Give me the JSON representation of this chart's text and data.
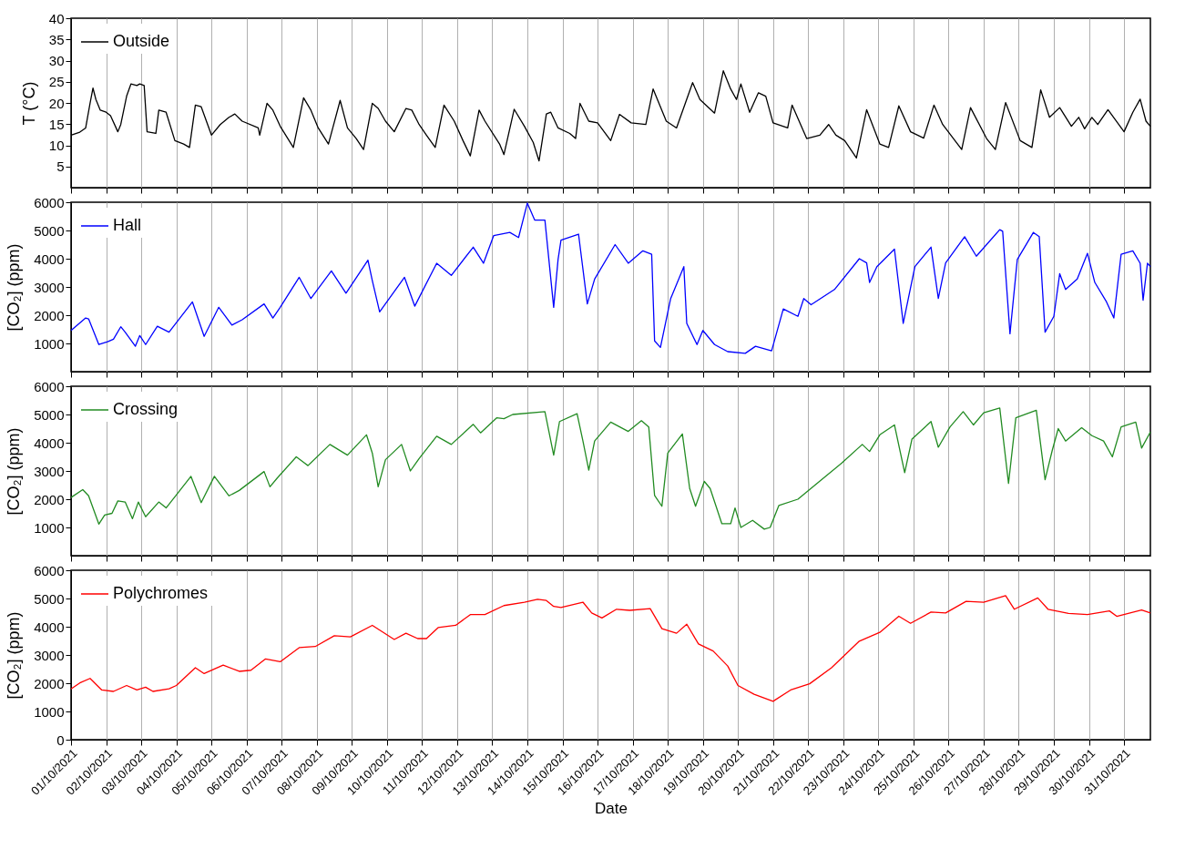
{
  "chart_data": [
    {
      "type": "line",
      "ylabel": "T (°C)",
      "ylim": [
        0,
        40
      ],
      "yticks": [
        5,
        10,
        15,
        20,
        25,
        30,
        35,
        40
      ],
      "xlim": [
        "2021-10-01T00:00",
        "2021-10-31T18:00"
      ],
      "grid": "x",
      "legend": "top left",
      "tick_labels": "y",
      "xticks": [
        {
          "value": "2021-10-01",
          "label": null
        },
        {
          "value": "2021-10-02",
          "label": null
        },
        {
          "value": "2021-10-03",
          "label": null
        },
        {
          "value": "2021-10-04",
          "label": null
        },
        {
          "value": "2021-10-05",
          "label": null
        },
        {
          "value": "2021-10-06",
          "label": null
        },
        {
          "value": "2021-10-07",
          "label": null
        },
        {
          "value": "2021-10-08",
          "label": null
        },
        {
          "value": "2021-10-09",
          "label": null
        },
        {
          "value": "2021-10-10",
          "label": null
        },
        {
          "value": "2021-10-11",
          "label": null
        },
        {
          "value": "2021-10-12",
          "label": null
        },
        {
          "value": "2021-10-13",
          "label": null
        },
        {
          "value": "2021-10-14",
          "label": null
        },
        {
          "value": "2021-10-15",
          "label": null
        },
        {
          "value": "2021-10-16",
          "label": null
        },
        {
          "value": "2021-10-17",
          "label": null
        },
        {
          "value": "2021-10-18",
          "label": null
        },
        {
          "value": "2021-10-19",
          "label": null
        },
        {
          "value": "2021-10-20",
          "label": null
        },
        {
          "value": "2021-10-21",
          "label": null
        },
        {
          "value": "2021-10-22",
          "label": null
        },
        {
          "value": "2021-10-23",
          "label": null
        },
        {
          "value": "2021-10-24",
          "label": null
        },
        {
          "value": "2021-10-25",
          "label": null
        },
        {
          "value": "2021-10-26",
          "label": null
        },
        {
          "value": "2021-10-27",
          "label": null
        },
        {
          "value": "2021-10-28",
          "label": null
        },
        {
          "value": "2021-10-29",
          "label": null
        },
        {
          "value": "2021-10-30",
          "label": null
        },
        {
          "value": "2021-10-31",
          "label": null
        }
      ],
      "series": [
        {
          "name": "Outside",
          "color": "#000000",
          "x": [
            "2021-10-01T00:00",
            "2021-10-01T06:00",
            "2021-10-01T10:00",
            "2021-10-01T13:00",
            "2021-10-01T15:00",
            "2021-10-01T17:00",
            "2021-10-01T20:00",
            "2021-10-02T00:00",
            "2021-10-02T03:00",
            "2021-10-02T08:00",
            "2021-10-02T10:00",
            "2021-10-02T14:00",
            "2021-10-02T17:00",
            "2021-10-02T21:00",
            "2021-10-02T23:00",
            "2021-10-03T02:00",
            "2021-10-03T04:00",
            "2021-10-03T10:00",
            "2021-10-03T12:00",
            "2021-10-03T17:00",
            "2021-10-03T23:00",
            "2021-10-04T05:00",
            "2021-10-04T09:00",
            "2021-10-04T13:00",
            "2021-10-04T17:00",
            "2021-10-05T00:00",
            "2021-10-05T06:00",
            "2021-10-05T12:00",
            "2021-10-05T16:00",
            "2021-10-05T21:00",
            "2021-10-06T08:00",
            "2021-10-06T09:00",
            "2021-10-06T14:00",
            "2021-10-06T18:00",
            "2021-10-06T23:00",
            "2021-10-07T08:00",
            "2021-10-07T15:00",
            "2021-10-07T20:00",
            "2021-10-08T01:00",
            "2021-10-08T08:00",
            "2021-10-08T16:00",
            "2021-10-08T21:00",
            "2021-10-09T03:00",
            "2021-10-09T08:00",
            "2021-10-09T14:00",
            "2021-10-09T18:00",
            "2021-10-09T23:00",
            "2021-10-10T05:00",
            "2021-10-10T13:00",
            "2021-10-10T17:00",
            "2021-10-10T22:00",
            "2021-10-11T03:00",
            "2021-10-11T09:00",
            "2021-10-11T15:00",
            "2021-10-11T22:00",
            "2021-10-12T04:00",
            "2021-10-12T09:00",
            "2021-10-12T15:00",
            "2021-10-12T19:00",
            "2021-10-13T05:00",
            "2021-10-13T08:00",
            "2021-10-13T15:00",
            "2021-10-13T22:00",
            "2021-10-14T04:00",
            "2021-10-14T08:00",
            "2021-10-14T13:00",
            "2021-10-14T16:00",
            "2021-10-14T21:00",
            "2021-10-15T05:00",
            "2021-10-15T09:00",
            "2021-10-15T12:00",
            "2021-10-15T18:00",
            "2021-10-16T00:00",
            "2021-10-16T09:00",
            "2021-10-16T15:00",
            "2021-10-16T23:00",
            "2021-10-17T09:00",
            "2021-10-17T14:00",
            "2021-10-17T23:00",
            "2021-10-18T06:00",
            "2021-10-18T17:00",
            "2021-10-18T22:00",
            "2021-10-19T08:00",
            "2021-10-19T14:00",
            "2021-10-19T19:00",
            "2021-10-19T23:00",
            "2021-10-20T02:00",
            "2021-10-20T08:00",
            "2021-10-20T14:00",
            "2021-10-20T19:00",
            "2021-10-21T00:00",
            "2021-10-21T10:00",
            "2021-10-21T13:00",
            "2021-10-21T23:00",
            "2021-10-22T08:00",
            "2021-10-22T14:00",
            "2021-10-22T19:00",
            "2021-10-23T01:00",
            "2021-10-23T09:00",
            "2021-10-23T16:00",
            "2021-10-24T01:00",
            "2021-10-24T07:00",
            "2021-10-24T14:00",
            "2021-10-24T22:00",
            "2021-10-25T07:00",
            "2021-10-25T14:00",
            "2021-10-25T20:00",
            "2021-10-26T09:00",
            "2021-10-26T15:00",
            "2021-10-27T02:00",
            "2021-10-27T08:00",
            "2021-10-27T15:00",
            "2021-10-28T01:00",
            "2021-10-28T09:00",
            "2021-10-28T15:00",
            "2021-10-28T21:00",
            "2021-10-29T04:00",
            "2021-10-29T12:00",
            "2021-10-29T17:00",
            "2021-10-29T21:00",
            "2021-10-30T02:00",
            "2021-10-30T06:00",
            "2021-10-30T13:00",
            "2021-10-31T00:00",
            "2021-10-31T06:00",
            "2021-10-31T11:00",
            "2021-10-31T15:00",
            "2021-10-31T18:00"
          ],
          "values": [
            12.4,
            13.1,
            14.1,
            19.9,
            23.5,
            20.8,
            18.3,
            17.8,
            17.0,
            13.2,
            14.9,
            21.6,
            24.5,
            24.1,
            24.5,
            24.1,
            13.2,
            12.8,
            18.3,
            17.8,
            11.1,
            10.3,
            9.5,
            19.5,
            19.1,
            12.4,
            14.9,
            16.6,
            17.4,
            15.7,
            14.1,
            12.4,
            19.9,
            18.3,
            14.5,
            9.5,
            21.2,
            18.3,
            14.1,
            10.3,
            20.6,
            14.1,
            11.6,
            9.0,
            19.9,
            18.7,
            15.7,
            13.2,
            18.7,
            18.3,
            14.9,
            12.4,
            9.5,
            19.5,
            15.7,
            11.1,
            7.5,
            18.3,
            15.7,
            10.3,
            7.8,
            18.5,
            14.5,
            10.7,
            6.3,
            17.4,
            17.8,
            14.1,
            12.8,
            11.6,
            19.9,
            15.7,
            15.3,
            11.1,
            17.3,
            15.3,
            14.9,
            23.3,
            15.7,
            14.1,
            24.8,
            20.8,
            17.6,
            27.6,
            23.3,
            20.8,
            24.5,
            17.8,
            22.4,
            21.6,
            15.3,
            14.1,
            19.5,
            11.6,
            12.4,
            14.9,
            12.4,
            11.1,
            7.0,
            18.4,
            10.3,
            9.5,
            19.3,
            13.2,
            11.7,
            19.5,
            14.9,
            9.0,
            18.9,
            11.6,
            9.0,
            20.1,
            11.1,
            9.5,
            23.1,
            16.6,
            18.9,
            14.5,
            16.6,
            13.9,
            16.6,
            14.9,
            18.4,
            13.2,
            17.8,
            20.9,
            15.7,
            14.5
          ]
        }
      ]
    },
    {
      "type": "line",
      "ylabel": "[CO₂] (ppm)",
      "ylim": [
        0,
        6000
      ],
      "yticks": [
        1000,
        2000,
        3000,
        4000,
        5000,
        6000
      ],
      "xlim": [
        "2021-10-01T00:00",
        "2021-10-31T18:00"
      ],
      "grid": "x",
      "legend": "top left",
      "tick_labels": "y",
      "xticks": [
        {
          "value": "2021-10-01",
          "label": null
        },
        {
          "value": "2021-10-02",
          "label": null
        },
        {
          "value": "2021-10-03",
          "label": null
        },
        {
          "value": "2021-10-04",
          "label": null
        },
        {
          "value": "2021-10-05",
          "label": null
        },
        {
          "value": "2021-10-06",
          "label": null
        },
        {
          "value": "2021-10-07",
          "label": null
        },
        {
          "value": "2021-10-08",
          "label": null
        },
        {
          "value": "2021-10-09",
          "label": null
        },
        {
          "value": "2021-10-10",
          "label": null
        },
        {
          "value": "2021-10-11",
          "label": null
        },
        {
          "value": "2021-10-12",
          "label": null
        },
        {
          "value": "2021-10-13",
          "label": null
        },
        {
          "value": "2021-10-14",
          "label": null
        },
        {
          "value": "2021-10-15",
          "label": null
        },
        {
          "value": "2021-10-16",
          "label": null
        },
        {
          "value": "2021-10-17",
          "label": null
        },
        {
          "value": "2021-10-18",
          "label": null
        },
        {
          "value": "2021-10-19",
          "label": null
        },
        {
          "value": "2021-10-20",
          "label": null
        },
        {
          "value": "2021-10-21",
          "label": null
        },
        {
          "value": "2021-10-22",
          "label": null
        },
        {
          "value": "2021-10-23",
          "label": null
        },
        {
          "value": "2021-10-24",
          "label": null
        },
        {
          "value": "2021-10-25",
          "label": null
        },
        {
          "value": "2021-10-26",
          "label": null
        },
        {
          "value": "2021-10-27",
          "label": null
        },
        {
          "value": "2021-10-28",
          "label": null
        },
        {
          "value": "2021-10-29",
          "label": null
        },
        {
          "value": "2021-10-30",
          "label": null
        },
        {
          "value": "2021-10-31",
          "label": null
        }
      ],
      "series": [
        {
          "name": "Hall",
          "color": "#0000ff",
          "x": [
            "2021-10-01T00:00",
            "2021-10-01T10:00",
            "2021-10-01T12:00",
            "2021-10-01T19:00",
            "2021-10-02T01:00",
            "2021-10-02T05:00",
            "2021-10-02T10:00",
            "2021-10-02T13:00",
            "2021-10-02T20:00",
            "2021-10-02T23:00",
            "2021-10-03T03:00",
            "2021-10-03T11:00",
            "2021-10-03T19:00",
            "2021-10-04T11:00",
            "2021-10-04T19:00",
            "2021-10-05T05:00",
            "2021-10-05T14:00",
            "2021-10-05T21:00",
            "2021-10-06T12:00",
            "2021-10-06T18:00",
            "2021-10-06T23:00",
            "2021-10-07T12:00",
            "2021-10-07T20:00",
            "2021-10-08T10:00",
            "2021-10-08T20:00",
            "2021-10-09T11:00",
            "2021-10-09T14:00",
            "2021-10-09T19:00",
            "2021-10-10T12:00",
            "2021-10-10T19:00",
            "2021-10-11T10:00",
            "2021-10-11T20:00",
            "2021-10-12T11:00",
            "2021-10-12T18:00",
            "2021-10-13T01:00",
            "2021-10-13T12:00",
            "2021-10-13T18:00",
            "2021-10-14T00:00",
            "2021-10-14T05:00",
            "2021-10-14T12:00",
            "2021-10-14T18:00",
            "2021-10-14T21:00",
            "2021-10-14T23:00",
            "2021-10-15T11:00",
            "2021-10-15T17:00",
            "2021-10-15T22:00",
            "2021-10-16T12:00",
            "2021-10-16T21:00",
            "2021-10-17T07:00",
            "2021-10-17T13:00",
            "2021-10-17T15:00",
            "2021-10-17T19:00",
            "2021-10-18T02:00",
            "2021-10-18T11:00",
            "2021-10-18T13:00",
            "2021-10-18T20:00",
            "2021-10-19T00:00",
            "2021-10-19T08:00",
            "2021-10-19T17:00",
            "2021-10-20T05:00",
            "2021-10-20T12:00",
            "2021-10-20T23:00",
            "2021-10-21T07:00",
            "2021-10-21T17:00",
            "2021-10-21T21:00",
            "2021-10-22T02:00",
            "2021-10-22T18:00",
            "2021-10-23T11:00",
            "2021-10-23T16:00",
            "2021-10-23T18:00",
            "2021-10-23T23:00",
            "2021-10-24T11:00",
            "2021-10-24T17:00",
            "2021-10-25T01:00",
            "2021-10-25T12:00",
            "2021-10-25T17:00",
            "2021-10-25T22:00",
            "2021-10-26T11:00",
            "2021-10-26T19:00",
            "2021-10-27T11:00",
            "2021-10-27T13:00",
            "2021-10-27T18:00",
            "2021-10-27T23:00",
            "2021-10-28T10:00",
            "2021-10-28T14:00",
            "2021-10-28T18:00",
            "2021-10-29T00:00",
            "2021-10-29T04:00",
            "2021-10-29T08:00",
            "2021-10-29T16:00",
            "2021-10-29T23:00",
            "2021-10-30T04:00",
            "2021-10-30T12:00",
            "2021-10-30T17:00",
            "2021-10-30T22:00",
            "2021-10-31T06:00",
            "2021-10-31T11:00",
            "2021-10-31T13:00",
            "2021-10-31T16:00",
            "2021-10-31T18:00"
          ],
          "values": [
            1460,
            1900,
            1870,
            960,
            1060,
            1150,
            1590,
            1400,
            900,
            1280,
            960,
            1610,
            1400,
            2470,
            1250,
            2280,
            1650,
            1840,
            2400,
            1900,
            2280,
            3340,
            2590,
            3570,
            2780,
            3950,
            3220,
            2120,
            3340,
            2320,
            3840,
            3410,
            4410,
            3840,
            4820,
            4930,
            4750,
            5970,
            5370,
            5370,
            2280,
            3970,
            4660,
            4870,
            2400,
            3280,
            4500,
            3840,
            4280,
            4160,
            1090,
            860,
            2590,
            3720,
            1710,
            960,
            1460,
            960,
            710,
            650,
            900,
            740,
            2220,
            1960,
            2590,
            2370,
            2910,
            4000,
            3850,
            3160,
            3720,
            4340,
            1710,
            3720,
            4410,
            2590,
            3850,
            4780,
            4090,
            5030,
            4970,
            1340,
            3970,
            4930,
            4780,
            1400,
            1960,
            3470,
            2910,
            3280,
            4190,
            3160,
            2470,
            1900,
            4160,
            4280,
            3840,
            2530,
            3840,
            3720
          ]
        }
      ]
    },
    {
      "type": "line",
      "ylabel": "[CO₂] (ppm)",
      "ylim": [
        0,
        6000
      ],
      "yticks": [
        1000,
        2000,
        3000,
        4000,
        5000,
        6000
      ],
      "xlim": [
        "2021-10-01T00:00",
        "2021-10-31T18:00"
      ],
      "grid": "x",
      "legend": "top left",
      "tick_labels": "y",
      "xticks": [
        {
          "value": "2021-10-01",
          "label": null
        },
        {
          "value": "2021-10-02",
          "label": null
        },
        {
          "value": "2021-10-03",
          "label": null
        },
        {
          "value": "2021-10-04",
          "label": null
        },
        {
          "value": "2021-10-05",
          "label": null
        },
        {
          "value": "2021-10-06",
          "label": null
        },
        {
          "value": "2021-10-07",
          "label": null
        },
        {
          "value": "2021-10-08",
          "label": null
        },
        {
          "value": "2021-10-09",
          "label": null
        },
        {
          "value": "2021-10-10",
          "label": null
        },
        {
          "value": "2021-10-11",
          "label": null
        },
        {
          "value": "2021-10-12",
          "label": null
        },
        {
          "value": "2021-10-13",
          "label": null
        },
        {
          "value": "2021-10-14",
          "label": null
        },
        {
          "value": "2021-10-15",
          "label": null
        },
        {
          "value": "2021-10-16",
          "label": null
        },
        {
          "value": "2021-10-17",
          "label": null
        },
        {
          "value": "2021-10-18",
          "label": null
        },
        {
          "value": "2021-10-19",
          "label": null
        },
        {
          "value": "2021-10-20",
          "label": null
        },
        {
          "value": "2021-10-21",
          "label": null
        },
        {
          "value": "2021-10-22",
          "label": null
        },
        {
          "value": "2021-10-23",
          "label": null
        },
        {
          "value": "2021-10-24",
          "label": null
        },
        {
          "value": "2021-10-25",
          "label": null
        },
        {
          "value": "2021-10-26",
          "label": null
        },
        {
          "value": "2021-10-27",
          "label": null
        },
        {
          "value": "2021-10-28",
          "label": null
        },
        {
          "value": "2021-10-29",
          "label": null
        },
        {
          "value": "2021-10-30",
          "label": null
        },
        {
          "value": "2021-10-31",
          "label": null
        }
      ],
      "series": [
        {
          "name": "Crossing",
          "color": "#228b22",
          "x": [
            "2021-10-01T00:00",
            "2021-10-01T08:00",
            "2021-10-01T12:00",
            "2021-10-01T19:00",
            "2021-10-01T23:00",
            "2021-10-02T04:00",
            "2021-10-02T08:00",
            "2021-10-02T13:00",
            "2021-10-02T18:00",
            "2021-10-02T22:00",
            "2021-10-03T03:00",
            "2021-10-03T12:00",
            "2021-10-03T17:00",
            "2021-10-04T10:00",
            "2021-10-04T17:00",
            "2021-10-05T02:00",
            "2021-10-05T12:00",
            "2021-10-05T19:00",
            "2021-10-06T12:00",
            "2021-10-06T16:00",
            "2021-10-06T21:00",
            "2021-10-07T10:00",
            "2021-10-07T18:00",
            "2021-10-08T09:00",
            "2021-10-08T21:00",
            "2021-10-09T10:00",
            "2021-10-09T14:00",
            "2021-10-09T18:00",
            "2021-10-09T23:00",
            "2021-10-10T10:00",
            "2021-10-10T16:00",
            "2021-10-10T22:00",
            "2021-10-11T10:00",
            "2021-10-11T20:00",
            "2021-10-12T11:00",
            "2021-10-12T16:00",
            "2021-10-13T03:00",
            "2021-10-13T08:00",
            "2021-10-13T14:00",
            "2021-10-14T12:00",
            "2021-10-14T18:00",
            "2021-10-14T22:00",
            "2021-10-15T10:00",
            "2021-10-15T14:00",
            "2021-10-15T18:00",
            "2021-10-15T22:00",
            "2021-10-16T09:00",
            "2021-10-16T21:00",
            "2021-10-17T06:00",
            "2021-10-17T11:00",
            "2021-10-17T15:00",
            "2021-10-17T20:00",
            "2021-10-18T00:00",
            "2021-10-18T10:00",
            "2021-10-18T15:00",
            "2021-10-18T19:00",
            "2021-10-19T01:00",
            "2021-10-19T05:00",
            "2021-10-19T13:00",
            "2021-10-19T19:00",
            "2021-10-19T22:00",
            "2021-10-20T02:00",
            "2021-10-20T10:00",
            "2021-10-20T18:00",
            "2021-10-20T22:00",
            "2021-10-21T04:00",
            "2021-10-21T17:00",
            "2021-10-22T06:00",
            "2021-10-22T23:00",
            "2021-10-23T13:00",
            "2021-10-23T18:00",
            "2021-10-24T01:00",
            "2021-10-24T11:00",
            "2021-10-24T18:00",
            "2021-10-24T23:00",
            "2021-10-25T12:00",
            "2021-10-25T17:00",
            "2021-10-26T01:00",
            "2021-10-26T10:00",
            "2021-10-26T17:00",
            "2021-10-27T00:00",
            "2021-10-27T11:00",
            "2021-10-27T17:00",
            "2021-10-27T22:00",
            "2021-10-28T12:00",
            "2021-10-28T18:00",
            "2021-10-28T23:00",
            "2021-10-29T03:00",
            "2021-10-29T08:00",
            "2021-10-29T19:00",
            "2021-10-30T02:00",
            "2021-10-30T10:00",
            "2021-10-30T16:00",
            "2021-10-30T22:00",
            "2021-10-31T08:00",
            "2021-10-31T12:00",
            "2021-10-31T18:00"
          ],
          "values": [
            2060,
            2340,
            2120,
            1120,
            1440,
            1500,
            1940,
            1900,
            1310,
            1900,
            1380,
            1900,
            1690,
            2810,
            1880,
            2810,
            2120,
            2310,
            2980,
            2440,
            2750,
            3500,
            3190,
            3940,
            3560,
            4280,
            3630,
            2440,
            3400,
            3940,
            3000,
            3440,
            4230,
            3940,
            4650,
            4350,
            4880,
            4850,
            5000,
            5100,
            3560,
            4750,
            5030,
            4060,
            3030,
            4060,
            4730,
            4400,
            4780,
            4560,
            2130,
            1750,
            3630,
            4310,
            2380,
            1750,
            2630,
            2380,
            1130,
            1130,
            1690,
            1000,
            1250,
            940,
            1000,
            1780,
            2000,
            2560,
            3280,
            3940,
            3690,
            4280,
            4630,
            2940,
            4130,
            4750,
            3840,
            4560,
            5100,
            4630,
            5060,
            5230,
            2560,
            4880,
            5150,
            2690,
            3750,
            4500,
            4060,
            4530,
            4250,
            4060,
            3500,
            4560,
            4730,
            3810,
            4380
          ]
        }
      ]
    },
    {
      "type": "line",
      "ylabel": "[CO₂] (ppm)",
      "xlabel": "Date",
      "ylim": [
        0,
        6000
      ],
      "yticks": [
        0,
        1000,
        2000,
        3000,
        4000,
        5000,
        6000
      ],
      "xlim": [
        "2021-10-01T00:00",
        "2021-10-31T18:00"
      ],
      "grid": "x",
      "legend": "top left",
      "xticks": [
        {
          "value": "2021-10-01",
          "label": "01/10/2021"
        },
        {
          "value": "2021-10-02",
          "label": "02/10/2021"
        },
        {
          "value": "2021-10-03",
          "label": "03/10/2021"
        },
        {
          "value": "2021-10-04",
          "label": "04/10/2021"
        },
        {
          "value": "2021-10-05",
          "label": "05/10/2021"
        },
        {
          "value": "2021-10-06",
          "label": "06/10/2021"
        },
        {
          "value": "2021-10-07",
          "label": "07/10/2021"
        },
        {
          "value": "2021-10-08",
          "label": "08/10/2021"
        },
        {
          "value": "2021-10-09",
          "label": "09/10/2021"
        },
        {
          "value": "2021-10-10",
          "label": "10/10/2021"
        },
        {
          "value": "2021-10-11",
          "label": "11/10/2021"
        },
        {
          "value": "2021-10-12",
          "label": "12/10/2021"
        },
        {
          "value": "2021-10-13",
          "label": "13/10/2021"
        },
        {
          "value": "2021-10-14",
          "label": "14/10/2021"
        },
        {
          "value": "2021-10-15",
          "label": "15/10/2021"
        },
        {
          "value": "2021-10-16",
          "label": "16/10/2021"
        },
        {
          "value": "2021-10-17",
          "label": "17/10/2021"
        },
        {
          "value": "2021-10-18",
          "label": "18/10/2021"
        },
        {
          "value": "2021-10-19",
          "label": "19/10/2021"
        },
        {
          "value": "2021-10-20",
          "label": "20/10/2021"
        },
        {
          "value": "2021-10-21",
          "label": "21/10/2021"
        },
        {
          "value": "2021-10-22",
          "label": "22/10/2021"
        },
        {
          "value": "2021-10-23",
          "label": "23/10/2021"
        },
        {
          "value": "2021-10-24",
          "label": "24/10/2021"
        },
        {
          "value": "2021-10-25",
          "label": "25/10/2021"
        },
        {
          "value": "2021-10-26",
          "label": "26/10/2021"
        },
        {
          "value": "2021-10-27",
          "label": "27/10/2021"
        },
        {
          "value": "2021-10-28",
          "label": "28/10/2021"
        },
        {
          "value": "2021-10-29",
          "label": "29/10/2021"
        },
        {
          "value": "2021-10-30",
          "label": "30/10/2021"
        },
        {
          "value": "2021-10-31",
          "label": "31/10/2021"
        }
      ],
      "series": [
        {
          "name": "Polychromes",
          "color": "#ff0000",
          "x": [
            "2021-10-01T00:00",
            "2021-10-01T06:00",
            "2021-10-01T13:00",
            "2021-10-01T21:00",
            "2021-10-02T05:00",
            "2021-10-02T14:00",
            "2021-10-02T21:00",
            "2021-10-03T03:00",
            "2021-10-03T08:00",
            "2021-10-03T19:00",
            "2021-10-04T00:00",
            "2021-10-04T13:00",
            "2021-10-04T19:00",
            "2021-10-05T08:00",
            "2021-10-05T19:00",
            "2021-10-06T03:00",
            "2021-10-06T13:00",
            "2021-10-06T23:00",
            "2021-10-07T12:00",
            "2021-10-07T23:00",
            "2021-10-08T12:00",
            "2021-10-08T23:00",
            "2021-10-09T14:00",
            "2021-10-10T05:00",
            "2021-10-10T13:00",
            "2021-10-10T21:00",
            "2021-10-11T03:00",
            "2021-10-11T11:00",
            "2021-10-11T23:00",
            "2021-10-12T09:00",
            "2021-10-12T19:00",
            "2021-10-13T08:00",
            "2021-10-13T22:00",
            "2021-10-14T07:00",
            "2021-10-14T13:00",
            "2021-10-14T18:00",
            "2021-10-14T23:00",
            "2021-10-15T14:00",
            "2021-10-15T20:00",
            "2021-10-16T03:00",
            "2021-10-16T13:00",
            "2021-10-16T22:00",
            "2021-10-17T12:00",
            "2021-10-17T20:00",
            "2021-10-18T06:00",
            "2021-10-18T13:00",
            "2021-10-18T21:00",
            "2021-10-19T07:00",
            "2021-10-19T17:00",
            "2021-10-20T00:00",
            "2021-10-20T11:00",
            "2021-10-21T00:00",
            "2021-10-21T12:00",
            "2021-10-22T01:00",
            "2021-10-22T16:00",
            "2021-10-23T11:00",
            "2021-10-24T01:00",
            "2021-10-24T14:00",
            "2021-10-24T22:00",
            "2021-10-25T12:00",
            "2021-10-25T22:00",
            "2021-10-26T12:00",
            "2021-10-27T00:00",
            "2021-10-27T15:00",
            "2021-10-27T21:00",
            "2021-10-28T13:00",
            "2021-10-28T20:00",
            "2021-10-29T10:00",
            "2021-10-29T23:00",
            "2021-10-30T14:00",
            "2021-10-30T19:00",
            "2021-10-31T12:00",
            "2021-10-31T18:00"
          ],
          "values": [
            1800,
            2010,
            2170,
            1760,
            1710,
            1920,
            1760,
            1860,
            1710,
            1800,
            1920,
            2550,
            2340,
            2640,
            2420,
            2460,
            2860,
            2760,
            3260,
            3300,
            3680,
            3640,
            4050,
            3550,
            3770,
            3580,
            3580,
            3970,
            4050,
            4430,
            4430,
            4750,
            4870,
            4970,
            4930,
            4720,
            4680,
            4870,
            4490,
            4310,
            4620,
            4580,
            4640,
            3930,
            3770,
            4090,
            3390,
            3140,
            2610,
            1920,
            1610,
            1360,
            1760,
            1980,
            2550,
            3490,
            3800,
            4370,
            4120,
            4520,
            4490,
            4900,
            4870,
            5100,
            4620,
            5020,
            4620,
            4470,
            4430,
            4560,
            4370,
            4590,
            4490
          ]
        }
      ]
    }
  ]
}
